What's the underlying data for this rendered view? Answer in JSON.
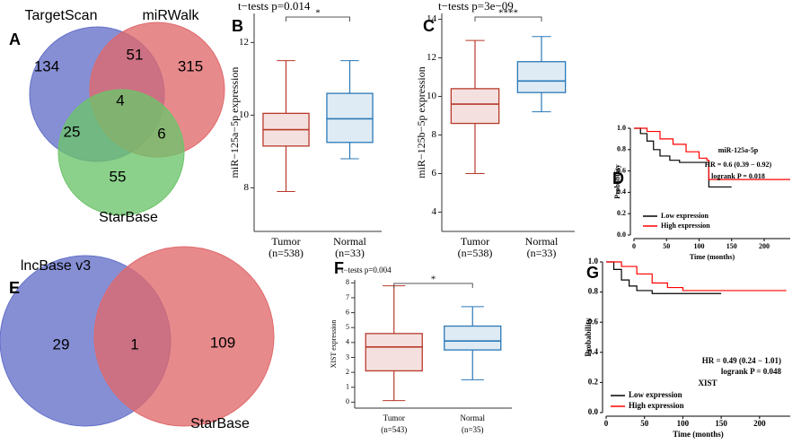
{
  "chart_data": [
    {
      "type": "venn",
      "panel": "A",
      "sets": [
        {
          "name": "TargetScan",
          "color": "#6470c8"
        },
        {
          "name": "miRWalk",
          "color": "#e0696b"
        },
        {
          "name": "StarBase",
          "color": "#6cc46a"
        }
      ],
      "values": [
        134,
        51,
        315,
        4,
        25,
        6,
        55
      ]
    },
    {
      "type": "box",
      "panel": "B",
      "title": "t−tests p=0.014",
      "ylabel": "miR−125a−5p expression",
      "categories": [
        "Tumor",
        "Normal"
      ],
      "n_labels": [
        "(n=538)",
        "(n=33)"
      ],
      "colors": [
        "#b8392a",
        "#2a78b8"
      ],
      "boxes": [
        {
          "min": 7.9,
          "q1": 9.15,
          "median": 9.6,
          "q3": 10.05,
          "max": 11.5
        },
        {
          "min": 8.8,
          "q1": 9.25,
          "median": 9.9,
          "q3": 10.6,
          "max": 11.5
        }
      ],
      "significance": "*",
      "ylim": [
        6.8,
        12.8
      ],
      "yticks": [
        8,
        10,
        12
      ]
    },
    {
      "type": "box",
      "panel": "C",
      "title": "t−tests p=3e−09",
      "ylabel": "miR−125b−5p expression",
      "categories": [
        "Tumor",
        "Normal"
      ],
      "n_labels": [
        "(n=538)",
        "(n=33)"
      ],
      "colors": [
        "#b8392a",
        "#2a78b8"
      ],
      "boxes": [
        {
          "min": 6,
          "q1": 8.6,
          "median": 9.6,
          "q3": 10.4,
          "max": 12.9
        },
        {
          "min": 9.2,
          "q1": 10.2,
          "median": 10.8,
          "q3": 11.8,
          "max": 13.1
        }
      ],
      "significance": "****",
      "ylim": [
        3,
        14.3
      ],
      "yticks": [
        4,
        6,
        8,
        10,
        12,
        14
      ]
    },
    {
      "type": "line",
      "panel": "D",
      "xlabel": "Time (months)",
      "ylabel": "Probability",
      "annotations": [
        "miR-125a-5p",
        "HR = 0.6 (0.39 − 0.92)",
        "logrank P = 0.018"
      ],
      "series": [
        {
          "name": "Low expression",
          "color": "#000000",
          "x": [
            0,
            10,
            20,
            30,
            40,
            55,
            70,
            115,
            150
          ],
          "values": [
            1,
            0.95,
            0.88,
            0.8,
            0.74,
            0.7,
            0.68,
            0.45,
            0.45
          ]
        },
        {
          "name": "High expression",
          "color": "#ff0000",
          "x": [
            0,
            20,
            40,
            60,
            80,
            100,
            112,
            115,
            240
          ],
          "values": [
            1,
            0.97,
            0.9,
            0.85,
            0.78,
            0.72,
            0.7,
            0.52,
            0.52
          ]
        }
      ],
      "xlim": [
        0,
        240
      ],
      "ylim": [
        0,
        1
      ],
      "xticks": [
        0,
        50,
        100,
        150,
        200
      ],
      "yticks": [
        {
          "value": 0,
          "label": "0.0"
        },
        0.2,
        0.4,
        0.6,
        0.8,
        {
          "value": 1,
          "label": "1.0"
        }
      ]
    },
    {
      "type": "venn",
      "panel": "E",
      "sets": [
        {
          "name": "lncBase v3",
          "color": "#6470c8"
        },
        {
          "name": "StarBase",
          "color": "#e0696b"
        }
      ],
      "values": [
        29,
        1,
        109
      ]
    },
    {
      "type": "box",
      "panel": "F",
      "title": "t−tests p=0.004",
      "ylabel": "XIST expression",
      "categories": [
        "Tumor",
        "Normal"
      ],
      "n_labels": [
        "(n=543)",
        "(n=35)"
      ],
      "colors": [
        "#b8392a",
        "#2a78b8"
      ],
      "boxes": [
        {
          "min": 0.1,
          "q1": 2.1,
          "median": 3.7,
          "q3": 4.6,
          "max": 7.8
        },
        {
          "min": 1.5,
          "q1": 3.5,
          "median": 4.1,
          "q3": 5.1,
          "max": 6.4
        }
      ],
      "significance": "*",
      "ylim": [
        -0.4,
        8.2
      ],
      "yticks": [
        0,
        1,
        2,
        3,
        4,
        5,
        6,
        7,
        8
      ]
    },
    {
      "type": "line",
      "panel": "G",
      "xlabel": "Time (months)",
      "ylabel": "Probability",
      "annotations": [
        "HR = 0.49 (0.24 − 1.01)",
        "logrank P = 0.048",
        "XIST"
      ],
      "series": [
        {
          "name": "Low expression",
          "color": "#000000",
          "x": [
            0,
            10,
            20,
            30,
            40,
            60,
            150
          ],
          "values": [
            1,
            0.95,
            0.88,
            0.84,
            0.81,
            0.79,
            0.79
          ]
        },
        {
          "name": "High expression",
          "color": "#ff0000",
          "x": [
            0,
            20,
            40,
            60,
            80,
            100,
            235
          ],
          "values": [
            1,
            0.97,
            0.92,
            0.86,
            0.83,
            0.81,
            0.81
          ]
        }
      ],
      "xlim": [
        0,
        240
      ],
      "ylim": [
        0,
        1
      ],
      "xticks": [
        0,
        50,
        100,
        150,
        200
      ],
      "yticks": [
        {
          "value": 0,
          "label": "0.0"
        },
        0.2,
        0.4,
        0.6,
        0.8,
        {
          "value": 1,
          "label": "1.0"
        }
      ]
    }
  ]
}
